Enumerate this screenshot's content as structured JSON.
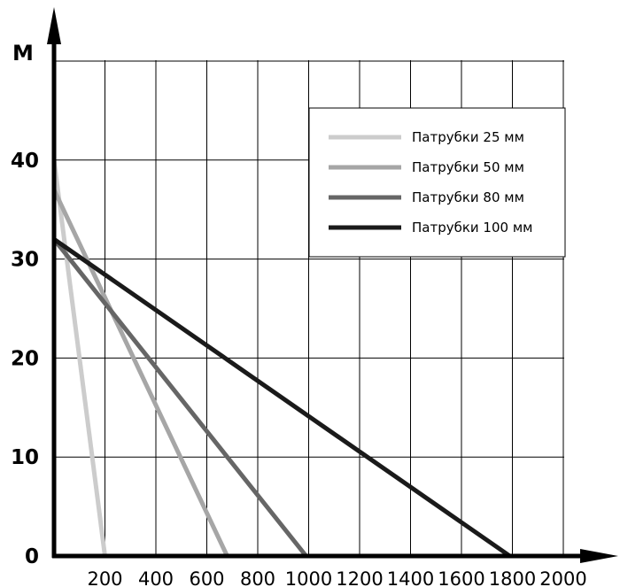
{
  "chart_data": {
    "type": "line",
    "ylabel": "М",
    "xlabel": "",
    "xlim": [
      0,
      2000
    ],
    "ylim": [
      0,
      50
    ],
    "x_ticks": [
      "200",
      "400",
      "600",
      "800",
      "1000",
      "1200",
      "1400",
      "1600",
      "1800",
      "2000"
    ],
    "y_ticks": [
      "0",
      "10",
      "20",
      "30",
      "40"
    ],
    "grid": true,
    "legend_position": "top-right",
    "series": [
      {
        "name": "Патрубки 25 мм",
        "color": "#cccccc",
        "x": [
          0,
          200
        ],
        "y": [
          40,
          0
        ]
      },
      {
        "name": "Патрубки 50 мм",
        "color": "#a6a6a6",
        "x": [
          0,
          680
        ],
        "y": [
          37,
          0
        ]
      },
      {
        "name": "Патрубки 80 мм",
        "color": "#666666",
        "x": [
          0,
          990
        ],
        "y": [
          32,
          0
        ]
      },
      {
        "name": "Патрубки 100 мм",
        "color": "#1a1a1a",
        "x": [
          0,
          1790
        ],
        "y": [
          32,
          0
        ]
      }
    ]
  }
}
